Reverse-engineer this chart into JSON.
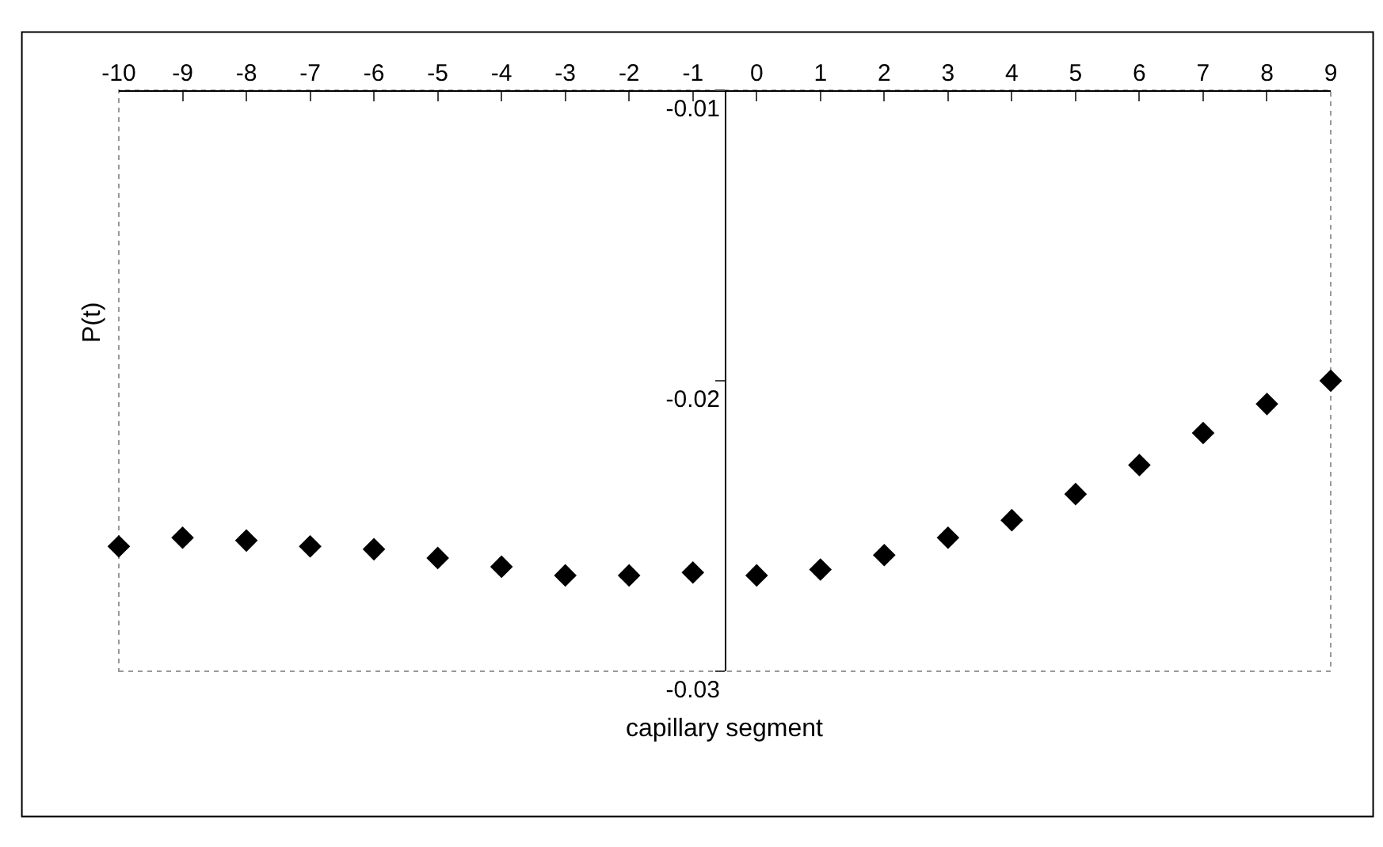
{
  "chart_data": {
    "type": "scatter",
    "xlabel": "capillary segment",
    "ylabel": "P(t)",
    "categories": [
      "-10",
      "-9",
      "-8",
      "-7",
      "-6",
      "-5",
      "-4",
      "-3",
      "-2",
      "-1",
      "0",
      "1",
      "2",
      "3",
      "4",
      "5",
      "6",
      "7",
      "8",
      "9"
    ],
    "series": [
      {
        "color": "#000000",
        "values": [
          -0.0257,
          -0.0254,
          -0.0255,
          -0.0257,
          -0.0258,
          -0.0261,
          -0.0264,
          -0.0267,
          -0.0267,
          -0.0266,
          -0.0267,
          -0.0265,
          -0.026,
          -0.0254,
          -0.0248,
          -0.0239,
          -0.0229,
          -0.0218,
          -0.0208,
          -0.02
        ]
      }
    ],
    "ylim": [
      -0.03,
      -0.01
    ],
    "yticks": [
      -0.03,
      -0.02,
      -0.01
    ],
    "marker": "diamond",
    "grid": false,
    "legend": false
  }
}
